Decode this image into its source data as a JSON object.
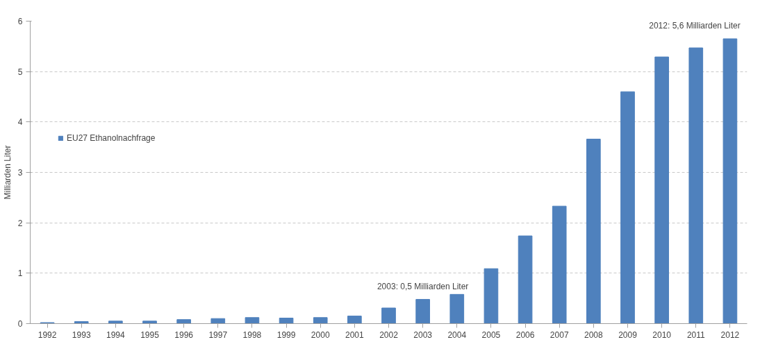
{
  "chart_data": {
    "type": "bar",
    "ylabel": "Milliarden Liter",
    "categories": [
      "1992",
      "1993",
      "1994",
      "1995",
      "1996",
      "1997",
      "1998",
      "1999",
      "2000",
      "2001",
      "2002",
      "2003",
      "2004",
      "2005",
      "2006",
      "2007",
      "2008",
      "2009",
      "2010",
      "2011",
      "2012"
    ],
    "series": [
      {
        "name": "EU27 Ethanolnachfrage",
        "color": "#4f81bd",
        "values": [
          0.02,
          0.04,
          0.05,
          0.05,
          0.08,
          0.1,
          0.12,
          0.11,
          0.12,
          0.15,
          0.31,
          0.48,
          0.58,
          1.09,
          1.74,
          2.33,
          3.66,
          4.6,
          5.29,
          5.47,
          5.65
        ]
      }
    ],
    "ylim": [
      0,
      6
    ],
    "yticks": [
      0,
      1,
      2,
      3,
      4,
      5,
      6
    ],
    "grid": "y",
    "legend": "left",
    "annotations": [
      {
        "text": "2003: 0,5 Milliarden Liter",
        "x": "2003",
        "y": 0.48
      },
      {
        "text": "2012: 5,6 Milliarden Liter",
        "x": "2012",
        "y": 5.65
      }
    ]
  }
}
